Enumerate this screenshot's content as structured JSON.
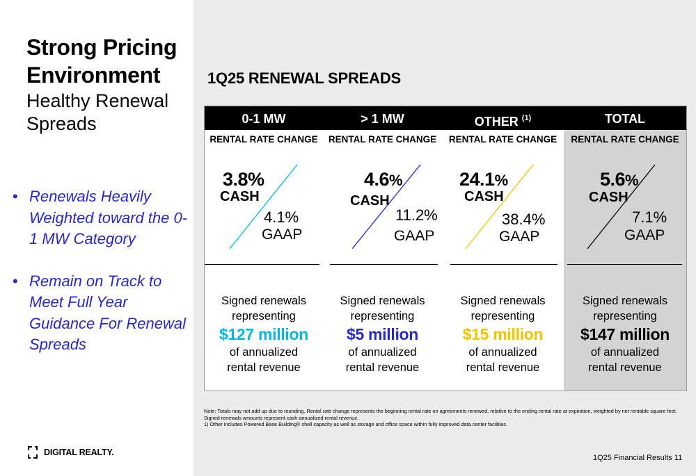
{
  "title": {
    "line1": "Strong Pricing",
    "line2": "Environment",
    "subtitle": "Healthy Renewal Spreads"
  },
  "bullets": [
    {
      "mark": "•",
      "text": "Renewals Heavily Weighted toward the 0-1 MW Category"
    },
    {
      "mark": "•",
      "text": "Remain on Track to Meet Full Year Guidance For Renewal Spreads"
    }
  ],
  "logo": {
    "text": "DIGITAL REALTY."
  },
  "section_title": "1Q25 RENEWAL SPREADS",
  "columns": [
    {
      "header": "0-1 MW",
      "sup": "",
      "sub": "RENTAL RATE CHANGE",
      "cash_value": "3.8",
      "cash_pct": "%",
      "cash_label": "CASH",
      "gaap_value": "4.1%",
      "gaap_label": "GAAP",
      "line1": "Signed renewals",
      "line2": "representing",
      "amount": "$127 million",
      "line3": "of annualized",
      "line4": "rental revenue",
      "accent": "#00b8e6"
    },
    {
      "header": "> 1 MW",
      "sup": "",
      "sub": "RENTAL RATE CHANGE",
      "cash_value": "4.6",
      "cash_pct": "%",
      "cash_label": "CASH",
      "gaap_value": "11.2%",
      "gaap_label": "GAAP",
      "line1": "Signed renewals",
      "line2": "representing",
      "amount": "$5 million",
      "line3": "of annualized",
      "line4": "rental revenue",
      "accent": "#2828c8"
    },
    {
      "header": "OTHER",
      "sup": "(1)",
      "sub": "RENTAL RATE CHANGE",
      "cash_value": "24.1",
      "cash_pct": "%",
      "cash_label": "CASH",
      "gaap_value": "38.4%",
      "gaap_label": "GAAP",
      "line1": "Signed renewals",
      "line2": "representing",
      "amount": "$15 million",
      "line3": "of annualized",
      "line4": "rental revenue",
      "accent": "#f2c400"
    },
    {
      "header": "TOTAL",
      "sup": "",
      "sub": "RENTAL RATE CHANGE",
      "cash_value": "5.6",
      "cash_pct": "%",
      "cash_label": "CASH",
      "gaap_value": "7.1%",
      "gaap_label": "GAAP",
      "line1": "Signed renewals",
      "line2": "representing",
      "amount": "$147 million",
      "line3": "of annualized",
      "line4": "rental revenue",
      "accent": "#000000"
    }
  ],
  "notes": [
    "Note:  Totals may not add up due to rounding. Rental rate change represents the beginning rental rate on agreements renewed, relative to the ending rental rate at expiration, weighted by net rentable square feet.",
    "Signed renewals amounts represent cash annualized rental revenue.",
    "1)      Other includes Powered Base Building® shell capacity as well as storage and office space within fully improved data center facilities."
  ],
  "footer": "1Q25 Financial Results 11"
}
